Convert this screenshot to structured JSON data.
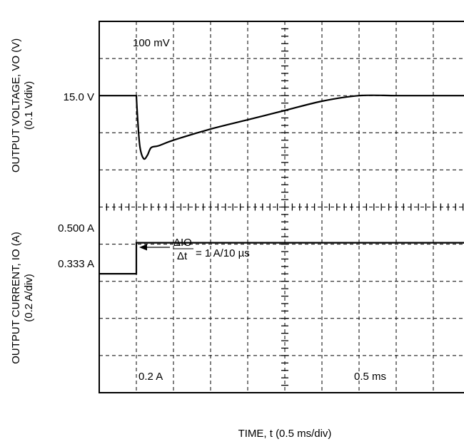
{
  "chart_data": {
    "type": "line",
    "title": "",
    "xlabel": "TIME, t (0.5 ms/div)",
    "x_unit": "ms",
    "x_div": 0.5,
    "xlim": [
      0,
      5.0
    ],
    "grid": true,
    "top_panel": {
      "ylabel_line1": "OUTPUT VOLTAGE, VO (V)",
      "ylabel_line2": "(0.1 V/div)",
      "reference_label": "15.0 V",
      "scale_label": "100 mV",
      "series": [
        {
          "x": [
            0,
            0.5,
            0.52,
            0.55,
            0.6,
            0.65,
            0.7,
            0.8,
            1.0,
            1.5,
            2.0,
            2.5,
            3.0,
            3.5,
            4.0,
            4.5,
            5.0
          ],
          "y": [
            15.0,
            15.0,
            14.93,
            14.86,
            14.83,
            14.84,
            14.86,
            14.865,
            14.88,
            14.91,
            14.935,
            14.96,
            14.985,
            15.0,
            15.0,
            15.0,
            15.0
          ]
        }
      ]
    },
    "bottom_panel": {
      "ylabel_line1": "OUTPUT CURRENT, IO (A)",
      "ylabel_line2": "(0.2 A/div)",
      "level_labels": [
        "0.500 A",
        "0.333 A"
      ],
      "scale_label": "0.2 A",
      "time_scale_label": "0.5 ms",
      "annotation": {
        "numerator": "ΔIO",
        "denominator": "Δt",
        "rhs": "= 1 A/10 µs"
      },
      "series": [
        {
          "x": [
            0,
            0.5,
            0.5,
            5.0
          ],
          "y": [
            0.333,
            0.333,
            0.5,
            0.5
          ]
        }
      ]
    }
  }
}
